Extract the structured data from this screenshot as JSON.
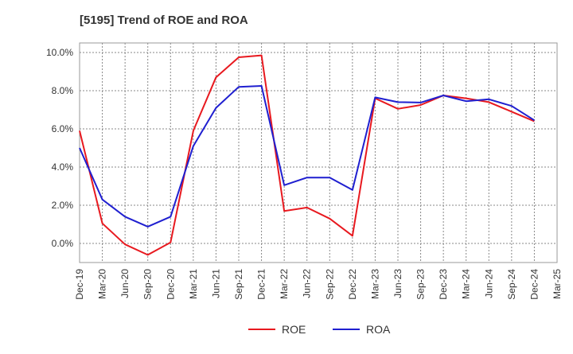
{
  "chart_data": {
    "type": "line",
    "title": "[5195]  Trend of ROE and ROA",
    "xlabel": "",
    "ylabel": "",
    "categories": [
      "Dec-19",
      "Mar-20",
      "Jun-20",
      "Sep-20",
      "Dec-20",
      "Mar-21",
      "Jun-21",
      "Sep-21",
      "Dec-21",
      "Mar-22",
      "Jun-22",
      "Sep-22",
      "Dec-22",
      "Mar-23",
      "Jun-23",
      "Sep-23",
      "Dec-23",
      "Mar-24",
      "Jun-24",
      "Sep-24",
      "Dec-24",
      "Mar-25"
    ],
    "ylim": [
      -1.0,
      10.5
    ],
    "yticks": [
      0,
      2,
      4,
      6,
      8,
      10
    ],
    "ytick_labels": [
      "0.0%",
      "2.0%",
      "4.0%",
      "6.0%",
      "8.0%",
      "10.0%"
    ],
    "grid": true,
    "legend_position": "bottom-center",
    "series": [
      {
        "name": "ROE",
        "color": "#e8191f",
        "values": [
          5.9,
          1.05,
          -0.05,
          -0.6,
          0.05,
          5.9,
          8.7,
          9.75,
          9.85,
          1.7,
          1.88,
          1.3,
          0.4,
          7.6,
          7.05,
          7.25,
          7.75,
          7.6,
          7.4,
          6.9,
          6.4,
          null
        ]
      },
      {
        "name": "ROA",
        "color": "#1f1fd0",
        "values": [
          5.0,
          2.3,
          1.4,
          0.88,
          1.4,
          5.1,
          7.1,
          8.2,
          8.25,
          3.05,
          3.45,
          3.45,
          2.8,
          7.65,
          7.4,
          7.38,
          7.75,
          7.45,
          7.55,
          7.2,
          6.45,
          null
        ]
      }
    ]
  }
}
